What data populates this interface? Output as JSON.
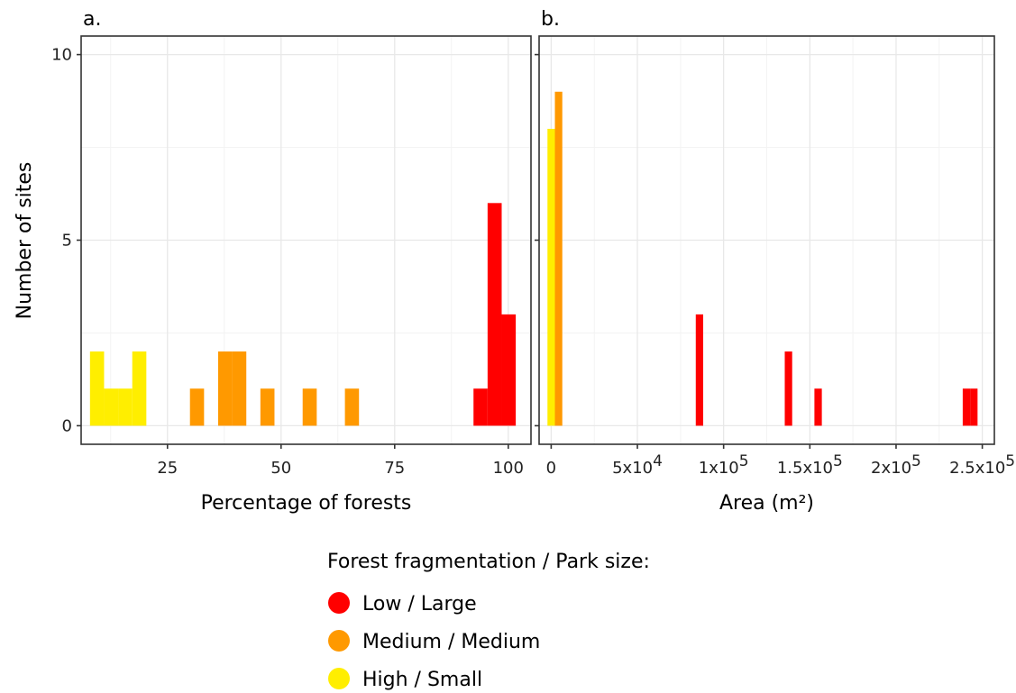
{
  "colors": {
    "low": "#ff0000",
    "medium": "#ff9900",
    "high": "#ffee00",
    "grid_major": "#e8e8e8",
    "grid_minor": "#f3f3f3",
    "frame": "#333333"
  },
  "y_axis_title": "Number of sites",
  "legend": {
    "title": "Forest fragmentation / Park size:",
    "items": [
      {
        "label": "Low / Large",
        "color_key": "low"
      },
      {
        "label": "Medium / Medium",
        "color_key": "medium"
      },
      {
        "label": "High / Small",
        "color_key": "high"
      }
    ]
  },
  "chart_data": [
    {
      "type": "bar",
      "panel_label": "a.",
      "xlabel": "Percentage of forests",
      "ylabel": "Number of sites",
      "xlim": [
        6,
        105
      ],
      "ylim": [
        -0.5,
        10.5
      ],
      "x_ticks": [
        25,
        50,
        75,
        100
      ],
      "x_tick_labels": [
        "25",
        "50",
        "75",
        "100"
      ],
      "y_ticks": [
        0,
        5,
        10
      ],
      "y_tick_labels": [
        "0",
        "5",
        "10"
      ],
      "grid": true,
      "bin_width": 3.1,
      "bars": [
        {
          "x": 9.5,
          "value": 2,
          "group": "high"
        },
        {
          "x": 12.6,
          "value": 1,
          "group": "high"
        },
        {
          "x": 15.7,
          "value": 1,
          "group": "high"
        },
        {
          "x": 18.8,
          "value": 2,
          "group": "high"
        },
        {
          "x": 31.5,
          "value": 1,
          "group": "medium"
        },
        {
          "x": 37.7,
          "value": 2,
          "group": "medium"
        },
        {
          "x": 40.8,
          "value": 2,
          "group": "medium"
        },
        {
          "x": 47.0,
          "value": 1,
          "group": "medium"
        },
        {
          "x": 56.3,
          "value": 1,
          "group": "medium"
        },
        {
          "x": 65.6,
          "value": 1,
          "group": "medium"
        },
        {
          "x": 93.9,
          "value": 1,
          "group": "low"
        },
        {
          "x": 97.0,
          "value": 6,
          "group": "low"
        },
        {
          "x": 100.1,
          "value": 3,
          "group": "low"
        }
      ]
    },
    {
      "type": "bar",
      "panel_label": "b.",
      "xlabel": "Area (m²)",
      "ylabel": "",
      "xlim": [
        -7000,
        257000
      ],
      "ylim": [
        -0.5,
        10.5
      ],
      "x_ticks": [
        0,
        50000,
        100000,
        150000,
        200000,
        250000
      ],
      "x_tick_labels": [
        {
          "base": "0",
          "exp": ""
        },
        {
          "base": "5x10",
          "exp": "4"
        },
        {
          "base": "1x10",
          "exp": "5"
        },
        {
          "base": "1.5x10",
          "exp": "5"
        },
        {
          "base": "2x10",
          "exp": "5"
        },
        {
          "base": "2.5x10",
          "exp": "5"
        }
      ],
      "y_ticks": [
        0,
        5,
        10
      ],
      "grid": true,
      "bin_width": 4300,
      "bars": [
        {
          "x": 0,
          "value": 8,
          "group": "high"
        },
        {
          "x": 4300,
          "value": 9,
          "group": "medium"
        },
        {
          "x": 86000,
          "value": 3,
          "group": "low"
        },
        {
          "x": 137600,
          "value": 2,
          "group": "low"
        },
        {
          "x": 154800,
          "value": 1,
          "group": "low"
        },
        {
          "x": 240800,
          "value": 1,
          "group": "low"
        },
        {
          "x": 245100,
          "value": 1,
          "group": "low"
        }
      ]
    }
  ]
}
